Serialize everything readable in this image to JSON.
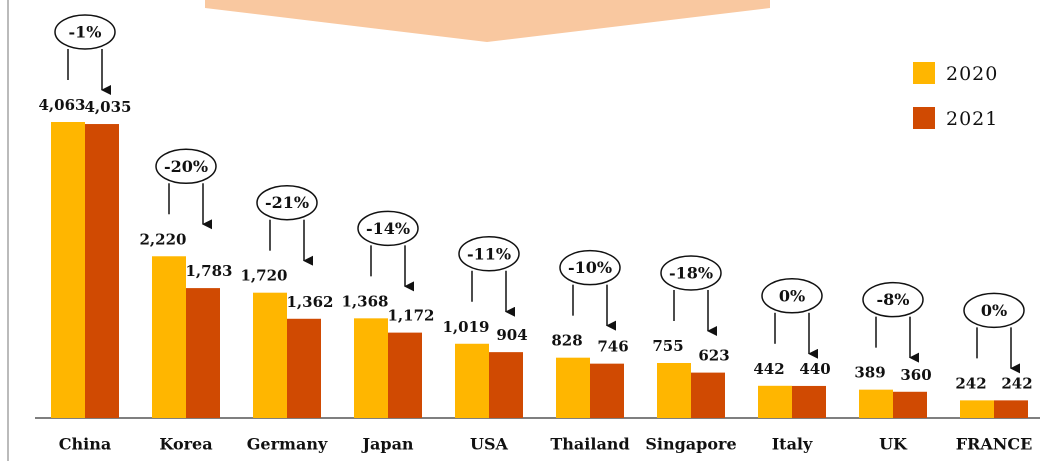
{
  "chart_data": {
    "type": "bar",
    "categories": [
      "China",
      "Korea",
      "Germany",
      "Japan",
      "USA",
      "Thailand",
      "Singapore",
      "Italy",
      "UK",
      "FRANCE"
    ],
    "series": [
      {
        "name": "2020",
        "color": "#FFB600",
        "values": [
          4063,
          2220,
          1720,
          1368,
          1019,
          828,
          755,
          442,
          389,
          242
        ],
        "value_labels": [
          "4,063",
          "2,220",
          "1,720",
          "1,368",
          "1,019",
          "828",
          "755",
          "442",
          "389",
          "242"
        ]
      },
      {
        "name": "2021",
        "color": "#D04A02",
        "values": [
          4035,
          1783,
          1362,
          1172,
          904,
          746,
          623,
          440,
          360,
          242
        ],
        "value_labels": [
          "4,035",
          "1,783",
          "1,362",
          "1,172",
          "904",
          "746",
          "623",
          "440",
          "360",
          "242"
        ]
      }
    ],
    "annotations": [
      "-1%",
      "-20%",
      "-21%",
      "-14%",
      "-11%",
      "-10%",
      "-18%",
      "0%",
      "-8%",
      "0%"
    ],
    "legend": "upper right"
  }
}
